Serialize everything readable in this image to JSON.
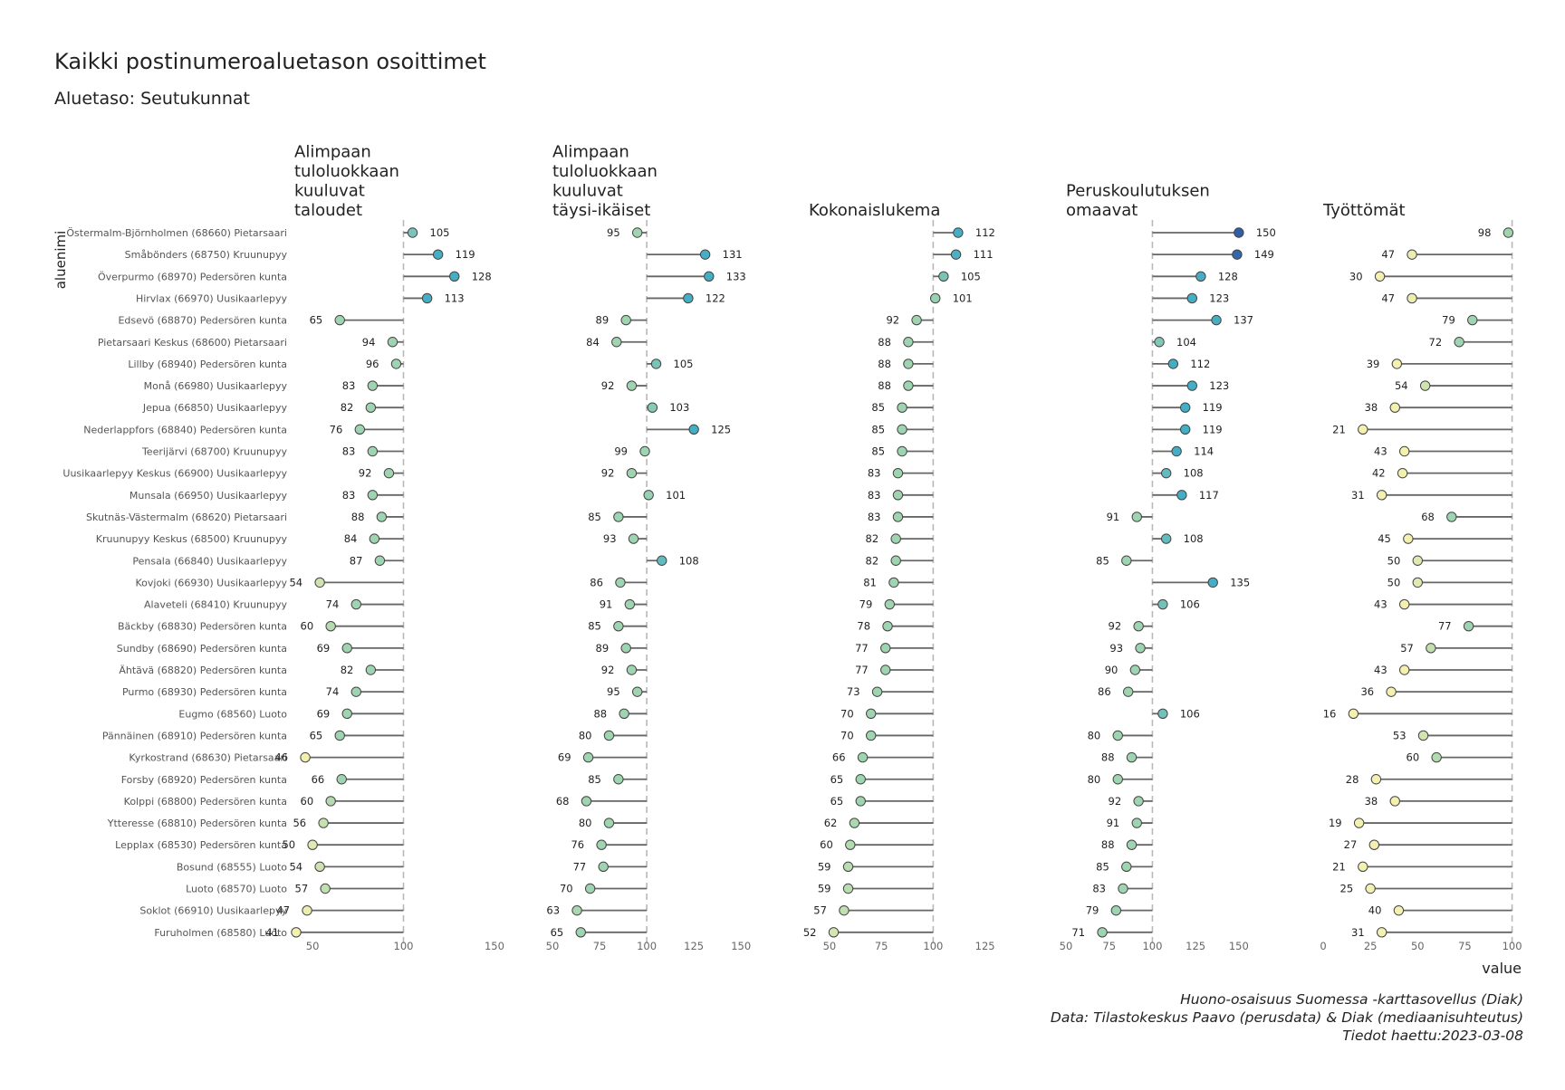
{
  "title": "Kaikki postinumeroaluetason osoittimet",
  "subtitle": "Aluetaso: Seutukunnat",
  "caption": [
    "Huono-osaisuus Suomessa -karttasovellus (Diak)",
    "Data: Tilastokeskus Paavo (perusdata) & Diak (mediaanisuhteutus)",
    "Tiedot haettu:2023-03-08"
  ],
  "chart_data": {
    "type": "lollipop",
    "ylabel": "aluenimi",
    "xlabel": "value",
    "reference_value": 100,
    "categories": [
      "Östermalm-Björnholmen (68660) Pietarsaari",
      "Småbönders (68750) Kruunupyy",
      "Överpurmo (68970) Pedersören kunta",
      "Hirvlax (66970) Uusikaarlepyy",
      "Edsevö (68870) Pedersören kunta",
      "Pietarsaari Keskus (68600) Pietarsaari",
      "Lillby (68940) Pedersören kunta",
      "Monå (66980) Uusikaarlepyy",
      "Jepua (66850) Uusikaarlepyy",
      "Nederlappfors (68840) Pedersören kunta",
      "Teerijärvi (68700) Kruunupyy",
      "Uusikaarlepyy Keskus (66900) Uusikaarlepyy",
      "Munsala (66950) Uusikaarlepyy",
      "Skutnäs-Västermalm (68620) Pietarsaari",
      "Kruunupyy Keskus (68500) Kruunupyy",
      "Pensala (66840) Uusikaarlepyy",
      "Kovjoki (66930) Uusikaarlepyy",
      "Alaveteli (68410) Kruunupyy",
      "Bäckby (68830) Pedersören kunta",
      "Sundby (68690) Pedersören kunta",
      "Ähtävä (68820) Pedersören kunta",
      "Purmo (68930) Pedersören kunta",
      "Eugmo (68560) Luoto",
      "Pännäinen (68910) Pedersören kunta",
      "Kyrkostrand (68630) Pietarsaari",
      "Forsby (68920) Pedersören kunta",
      "Kolppi (68800) Pedersören kunta",
      "Ytteresse (68810) Pedersören kunta",
      "Lepplax (68530) Pedersören kunta",
      "Bosund (68555) Luoto",
      "Luoto (68570) Luoto",
      "Soklot (66910) Uusikaarlepyy",
      "Furuholmen (68580) Luoto"
    ],
    "panels": [
      {
        "title": [
          "Alimpaan",
          "tuloluokkaan",
          "kuuluvat",
          "taloudet"
        ],
        "xlim": [
          40,
          160
        ],
        "ticks": [
          50,
          100,
          150
        ],
        "values": [
          105,
          119,
          128,
          113,
          65,
          94,
          96,
          83,
          82,
          76,
          83,
          92,
          83,
          88,
          84,
          87,
          54,
          74,
          60,
          69,
          82,
          74,
          69,
          65,
          46,
          66,
          60,
          56,
          50,
          54,
          57,
          47,
          41
        ]
      },
      {
        "title": [
          "Alimpaan",
          "tuloluokkaan",
          "kuuluvat",
          "täysi-ikäiset"
        ],
        "xlim": [
          50,
          160
        ],
        "ticks": [
          50,
          75,
          100,
          125,
          150
        ],
        "values": [
          95,
          131,
          133,
          122,
          89,
          84,
          105,
          92,
          103,
          125,
          99,
          92,
          101,
          85,
          93,
          108,
          86,
          91,
          85,
          89,
          92,
          95,
          88,
          80,
          69,
          85,
          68,
          80,
          76,
          77,
          70,
          63,
          65
        ]
      },
      {
        "title": [
          "Kokonaislukema"
        ],
        "xlim": [
          40,
          140
        ],
        "ticks": [
          50,
          75,
          100,
          125
        ],
        "values": [
          112,
          111,
          105,
          101,
          92,
          88,
          88,
          88,
          85,
          85,
          85,
          83,
          83,
          83,
          82,
          82,
          81,
          79,
          78,
          77,
          77,
          73,
          70,
          70,
          66,
          65,
          65,
          62,
          60,
          59,
          59,
          57,
          52
        ]
      },
      {
        "title": [
          "Peruskoulutuksen",
          "omaavat"
        ],
        "xlim": [
          50,
          170
        ],
        "ticks": [
          50,
          75,
          100,
          125,
          150
        ],
        "values": [
          150,
          149,
          128,
          123,
          137,
          104,
          112,
          123,
          119,
          119,
          114,
          108,
          117,
          91,
          108,
          85,
          135,
          106,
          92,
          93,
          90,
          86,
          106,
          80,
          88,
          80,
          92,
          91,
          88,
          85,
          83,
          79,
          71
        ]
      },
      {
        "title": [
          "Työttömät"
        ],
        "xlim": [
          0,
          105
        ],
        "ticks": [
          0,
          25,
          50,
          75,
          100
        ],
        "values": [
          98,
          47,
          30,
          47,
          79,
          72,
          39,
          54,
          38,
          21,
          43,
          42,
          31,
          68,
          45,
          50,
          50,
          43,
          77,
          57,
          43,
          36,
          16,
          53,
          60,
          28,
          38,
          19,
          27,
          21,
          25,
          40,
          31
        ]
      }
    ],
    "color_scale": {
      "low": "#f4f0b0",
      "mid": "#9fd4b0",
      "high": "#44aec4",
      "max": "#2f5fa8"
    }
  }
}
